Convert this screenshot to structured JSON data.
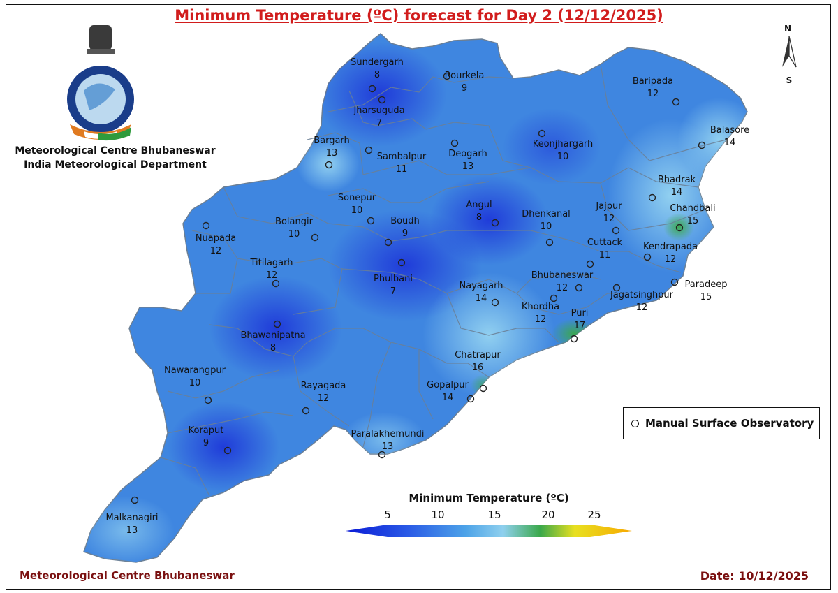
{
  "title": "Minimum Temperature (ºC) forecast for Day 2 (12/12/2025)",
  "organization": [
    "Meteorological Centre Bhubaneswar",
    "India Meteorological Department"
  ],
  "footer": {
    "left": "Meteorological Centre Bhubaneswar",
    "date": "Date: 10/12/2025"
  },
  "north_arrow": {
    "n": "N",
    "s": "S"
  },
  "legend": {
    "symbol_label": "Manual Surface Observatory"
  },
  "colorbar": {
    "title": "Minimum Temperature (ºC)",
    "ticks": [
      "5",
      "10",
      "15",
      "20",
      "25"
    ],
    "colors": [
      "#0a1ad6",
      "#2a5be6",
      "#4da3e8",
      "#8fd0ee",
      "#3aa84a",
      "#e8e020",
      "#f7a800"
    ]
  },
  "stations": [
    {
      "name": "Sundergarh",
      "value": "8"
    },
    {
      "name": "Rourkela",
      "value": "9"
    },
    {
      "name": "Jharsuguda",
      "value": "7"
    },
    {
      "name": "Baripada",
      "value": "12"
    },
    {
      "name": "Balasore",
      "value": "14"
    },
    {
      "name": "Bargarh",
      "value": "13"
    },
    {
      "name": "Sambalpur",
      "value": "11"
    },
    {
      "name": "Deogarh",
      "value": "13"
    },
    {
      "name": "Keonjhargarh",
      "value": "10"
    },
    {
      "name": "Bhadrak",
      "value": "14"
    },
    {
      "name": "Chandbali",
      "value": "15"
    },
    {
      "name": "Sonepur",
      "value": "10"
    },
    {
      "name": "Angul",
      "value": "8"
    },
    {
      "name": "Dhenkanal",
      "value": "10"
    },
    {
      "name": "Jajpur",
      "value": "12"
    },
    {
      "name": "Bolangir",
      "value": "10"
    },
    {
      "name": "Boudh",
      "value": "9"
    },
    {
      "name": "Nuapada",
      "value": "12"
    },
    {
      "name": "Cuttack",
      "value": "11"
    },
    {
      "name": "Kendrapada",
      "value": "12"
    },
    {
      "name": "Titilagarh",
      "value": "12"
    },
    {
      "name": "Phulbani",
      "value": "7"
    },
    {
      "name": "Bhubaneswar",
      "value": "12"
    },
    {
      "name": "Paradeep",
      "value": "15"
    },
    {
      "name": "Nayagarh",
      "value": "14"
    },
    {
      "name": "Jagatsinghpur",
      "value": "12"
    },
    {
      "name": "Khordha",
      "value": "12"
    },
    {
      "name": "Puri",
      "value": "17"
    },
    {
      "name": "Bhawanipatna",
      "value": "8"
    },
    {
      "name": "Chatrapur",
      "value": "16"
    },
    {
      "name": "Nawarangpur",
      "value": "10"
    },
    {
      "name": "Rayagada",
      "value": "12"
    },
    {
      "name": "Gopalpur",
      "value": "14"
    },
    {
      "name": "Koraput",
      "value": "9"
    },
    {
      "name": "Paralakhemundi",
      "value": "13"
    },
    {
      "name": "Malkanagiri",
      "value": "13"
    }
  ]
}
